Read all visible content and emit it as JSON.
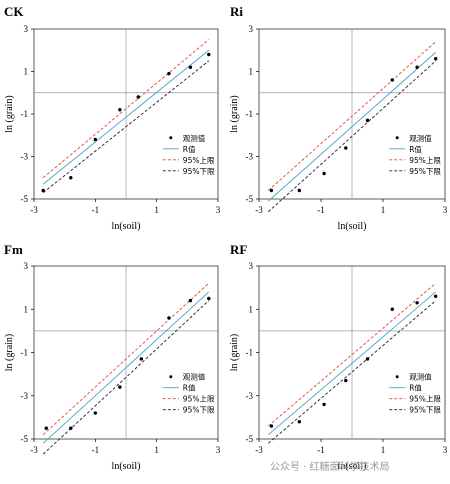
{
  "colors": {
    "background": "#ffffff",
    "axis": "#000000",
    "frame": "#333333",
    "zero_line": "#999999",
    "observed": "#000000",
    "predicted": "#4aa3c8",
    "upper": "#e0463a",
    "lower": "#222222"
  },
  "watermark": "公众号 · 红糖面科学技术局",
  "chart_data": [
    {
      "type": "scatter",
      "panel_label": "CK",
      "xlabel": "ln(soil)",
      "ylabel": "ln (grain)",
      "xlim": [
        -3,
        3
      ],
      "ylim": [
        -5,
        3
      ],
      "xticks": [
        -3,
        -1,
        1,
        3
      ],
      "yticks": [
        3,
        1,
        -1,
        -3,
        -5
      ],
      "legend_position": "center-right",
      "legend": [
        "观测值",
        "R值",
        "95%上限",
        "95%下限"
      ],
      "observed": {
        "x": [
          -2.7,
          -1.8,
          -1.0,
          -0.2,
          0.4,
          1.4,
          2.1,
          2.7
        ],
        "y": [
          -4.6,
          -4.0,
          -2.2,
          -0.8,
          -0.2,
          0.9,
          1.2,
          1.8
        ]
      },
      "predicted": {
        "x": [
          -2.7,
          2.7
        ],
        "y": [
          -4.3,
          2.0
        ]
      },
      "upper": {
        "x": [
          -2.7,
          2.7
        ],
        "y": [
          -4.0,
          2.5
        ]
      },
      "lower": {
        "x": [
          -2.7,
          2.7
        ],
        "y": [
          -4.7,
          1.5
        ]
      }
    },
    {
      "type": "scatter",
      "panel_label": "Ri",
      "xlabel": "ln(soil)",
      "ylabel": "ln (grain)",
      "xlim": [
        -3,
        3
      ],
      "ylim": [
        -5,
        3
      ],
      "xticks": [
        -3,
        -1,
        1,
        3
      ],
      "yticks": [
        3,
        1,
        -1,
        -3,
        -5
      ],
      "legend_position": "center-right",
      "legend": [
        "观测值",
        "R值",
        "95%上限",
        "95%下限"
      ],
      "observed": {
        "x": [
          -2.6,
          -1.7,
          -0.9,
          -0.2,
          0.5,
          1.3,
          2.1,
          2.7
        ],
        "y": [
          -4.6,
          -4.6,
          -3.8,
          -2.6,
          -1.3,
          0.6,
          1.2,
          1.6
        ]
      },
      "predicted": {
        "x": [
          -2.7,
          2.7
        ],
        "y": [
          -5.1,
          1.9
        ]
      },
      "upper": {
        "x": [
          -2.7,
          2.7
        ],
        "y": [
          -4.6,
          2.4
        ]
      },
      "lower": {
        "x": [
          -2.7,
          2.7
        ],
        "y": [
          -5.6,
          1.5
        ]
      }
    },
    {
      "type": "scatter",
      "panel_label": "Fm",
      "xlabel": "ln(soil)",
      "ylabel": "ln (grain)",
      "xlim": [
        -3,
        3
      ],
      "ylim": [
        -5,
        3
      ],
      "xticks": [
        -3,
        -1,
        1,
        3
      ],
      "yticks": [
        3,
        1,
        -1,
        -3,
        -5
      ],
      "legend_position": "center-right",
      "legend": [
        "观测值",
        "R值",
        "95%上限",
        "95%下限"
      ],
      "observed": {
        "x": [
          -2.6,
          -1.8,
          -1.0,
          -0.2,
          0.5,
          1.4,
          2.1,
          2.7
        ],
        "y": [
          -4.5,
          -4.5,
          -3.8,
          -2.6,
          -1.3,
          0.6,
          1.4,
          1.5
        ]
      },
      "predicted": {
        "x": [
          -2.7,
          2.7
        ],
        "y": [
          -5.2,
          1.8
        ]
      },
      "upper": {
        "x": [
          -2.7,
          2.7
        ],
        "y": [
          -4.8,
          2.2
        ]
      },
      "lower": {
        "x": [
          -2.7,
          2.7
        ],
        "y": [
          -5.7,
          1.4
        ]
      }
    },
    {
      "type": "scatter",
      "panel_label": "RF",
      "xlabel": "ln(soil)",
      "ylabel": "ln (grain)",
      "xlim": [
        -3,
        3
      ],
      "ylim": [
        -5,
        3
      ],
      "xticks": [
        -3,
        -1,
        1,
        3
      ],
      "yticks": [
        3,
        1,
        -1,
        -3,
        -5
      ],
      "legend_position": "center-right",
      "legend": [
        "观测值",
        "R值",
        "95%上限",
        "95%下限"
      ],
      "observed": {
        "x": [
          -2.6,
          -1.7,
          -0.9,
          -0.2,
          0.5,
          1.3,
          2.1,
          2.7
        ],
        "y": [
          -4.4,
          -4.2,
          -3.4,
          -2.3,
          -1.3,
          1.0,
          1.3,
          1.6
        ]
      },
      "predicted": {
        "x": [
          -2.7,
          2.7
        ],
        "y": [
          -4.8,
          1.8
        ]
      },
      "upper": {
        "x": [
          -2.7,
          2.7
        ],
        "y": [
          -4.4,
          2.2
        ]
      },
      "lower": {
        "x": [
          -2.7,
          2.7
        ],
        "y": [
          -5.2,
          1.4
        ]
      }
    }
  ]
}
